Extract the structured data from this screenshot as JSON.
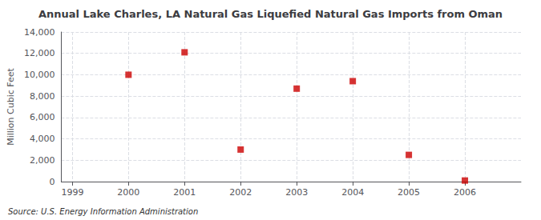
{
  "chart_data": {
    "type": "scatter",
    "title": "Annual Lake Charles, LA Natural Gas Liquefied Natural Gas Imports from Oman",
    "ylabel": "Million Cubic Feet",
    "annotations": [
      "Source: U.S. Energy Information Administration"
    ],
    "x": [
      2000,
      2001,
      2002,
      2003,
      2004,
      2005,
      2006
    ],
    "values": [
      10000,
      12100,
      3000,
      8700,
      9400,
      2500,
      100
    ],
    "color": "#cc0000",
    "marker": "square",
    "xlim": [
      1998.8,
      2007.0
    ],
    "xticks": [
      1999,
      2000,
      2001,
      2002,
      2003,
      2004,
      2005,
      2006
    ],
    "ylim": [
      0,
      14000
    ],
    "yticks": [
      0,
      {
        "value": 2000,
        "label": "2,000"
      },
      {
        "value": 4000,
        "label": "4,000"
      },
      {
        "value": 6000,
        "label": "6,000"
      },
      {
        "value": 8000,
        "label": "8,000"
      },
      {
        "value": 10000,
        "label": "10,000"
      },
      {
        "value": 12000,
        "label": "12,000"
      },
      {
        "value": 14000,
        "label": "14,000"
      }
    ],
    "grid": true
  }
}
